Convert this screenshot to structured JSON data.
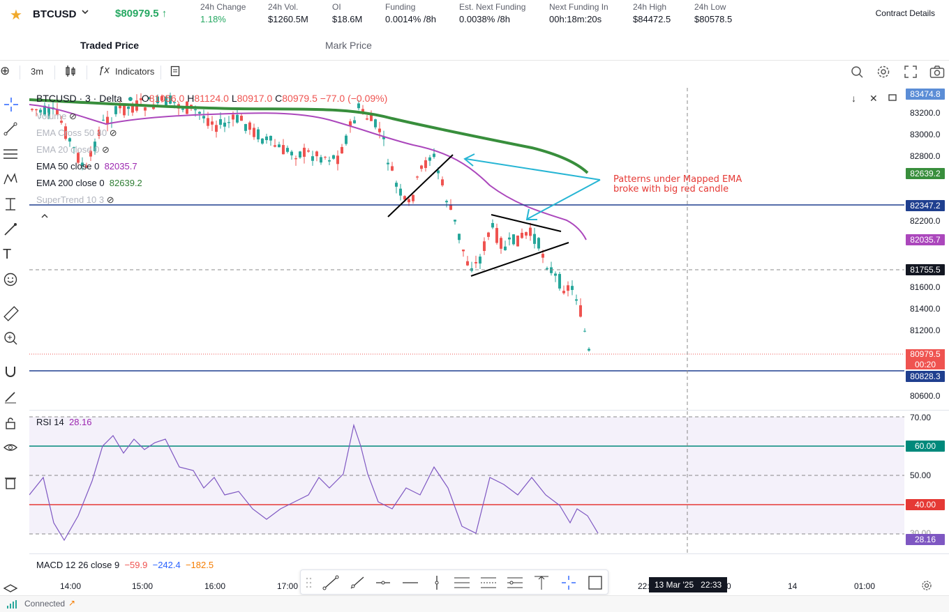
{
  "header": {
    "symbol": "BTCUSD",
    "last_price": "$80979.5",
    "stats": [
      {
        "label": "24h Change",
        "value": "1.18%",
        "green": true
      },
      {
        "label": "24h Vol.",
        "value": "$1260.5M"
      },
      {
        "label": "OI",
        "value": "$18.6M"
      },
      {
        "label": "Funding",
        "value": "0.0014% /8h"
      },
      {
        "label": "Est. Next Funding",
        "value": "0.0038% /8h"
      },
      {
        "label": "Next Funding In",
        "value": "00h:18m:20s"
      },
      {
        "label": "24h High",
        "value": "$84472.5"
      },
      {
        "label": "24h Low",
        "value": "$80578.5"
      }
    ],
    "contract_details": "Contract Details"
  },
  "price_tabs": {
    "traded": "Traded Price",
    "mark": "Mark Price"
  },
  "toolbar": {
    "interval": "3m",
    "indicators": "Indicators"
  },
  "chart": {
    "title": "BTCUSD · 3 · Delta",
    "ohlc": {
      "o_label": "O",
      "o": "81056.0",
      "h_label": "H",
      "h": "81124.0",
      "l_label": "L",
      "l": "80917.0",
      "c_label": "C",
      "c": "80979.5",
      "change": "−77.0 (−0.09%)"
    },
    "legends": [
      {
        "name": "Volume",
        "value": "",
        "faded": true
      },
      {
        "name": "EMA Cross 50 40",
        "value": "",
        "faded": true
      },
      {
        "name": "EMA 20 close 0",
        "value": "",
        "faded": true
      },
      {
        "name": "EMA 50 close 0",
        "value": "82035.7",
        "faded": false,
        "color": "purple"
      },
      {
        "name": "EMA 200 close 0",
        "value": "82639.2",
        "faded": false,
        "color": "green"
      },
      {
        "name": "SuperTrend 10 3",
        "value": "",
        "faded": true
      }
    ],
    "annotation_line1": "Patterns under Mapped EMA",
    "annotation_line2": "broke with big red candle",
    "price_ticks": [
      "83200.0",
      "83000.0",
      "82800.0",
      "82200.0",
      "81600.0",
      "81400.0",
      "81200.0",
      "80600.0"
    ],
    "price_tags": {
      "top": "83474.8",
      "ema200": "82639.2",
      "hline_upper": "82347.2",
      "ema50": "82035.7",
      "crosshair": "81755.5",
      "last": "80979.5",
      "countdown": "00:20",
      "hline_lower": "80828.3"
    },
    "colors": {
      "up": "#26a69a",
      "down": "#ef5350",
      "ema50": "#ab47bc",
      "ema200": "#388e3c",
      "hline": "#1f3f8f",
      "arrow": "#26b5d4"
    }
  },
  "rsi": {
    "name": "RSI 14",
    "value": "28.16",
    "ticks": [
      "70.00",
      "50.00",
      "30.00"
    ],
    "tag_upper": "60.00",
    "tag_lower": "40.00",
    "tag_value": "28.16"
  },
  "macd": {
    "name": "MACD 12 26 close 9",
    "v1": "−59.9",
    "v2": "−242.4",
    "v3": "−182.5"
  },
  "time_axis": {
    "labels": [
      "14:00",
      "15:00",
      "16:00",
      "17:00",
      "22:",
      "0",
      "14",
      "01:00"
    ],
    "crosshair_date": "13 Mar '25",
    "crosshair_time": "22:33"
  },
  "status": {
    "connection": "Connected"
  }
}
